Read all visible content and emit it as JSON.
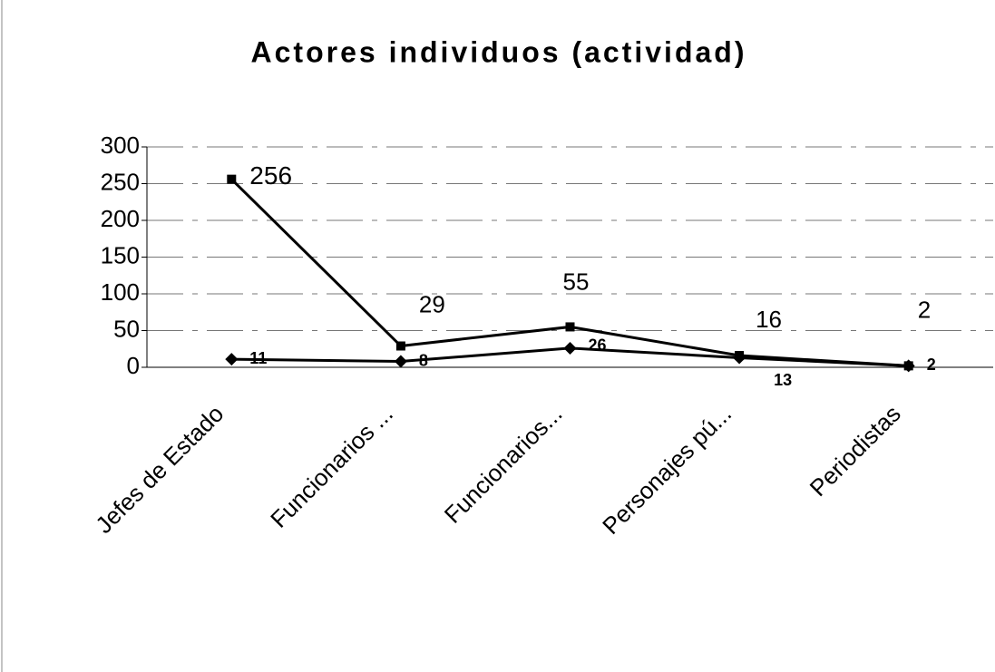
{
  "chart_data": {
    "type": "line",
    "title": "Actores individuos (actividad)",
    "categories": [
      "Jefes de Estado",
      "Funcionarios ...",
      "Funcionarios...",
      "Personajes pú...",
      "Periodistas"
    ],
    "series": [
      {
        "color": "#000000",
        "marker": "square",
        "values": [
          256,
          29,
          55,
          16,
          2
        ]
      },
      {
        "color": "#000000",
        "marker": "diamond",
        "values": [
          11,
          8,
          26,
          13,
          2
        ]
      }
    ],
    "ylim": [
      0,
      300
    ],
    "yticks": [
      0,
      50,
      100,
      150,
      200,
      250,
      300
    ],
    "grid": true
  }
}
